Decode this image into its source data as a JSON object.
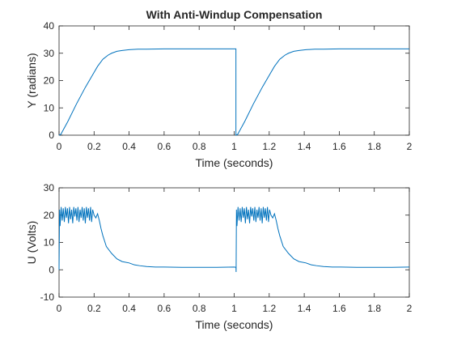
{
  "chart_data": [
    {
      "type": "line",
      "title": "With Anti-Windup Compensation",
      "xlabel": "Time (seconds)",
      "ylabel": "Y (radians)",
      "xlim": [
        0,
        2
      ],
      "ylim": [
        0,
        40
      ],
      "xticks": [
        0,
        0.2,
        0.4,
        0.6,
        0.8,
        1,
        1.2,
        1.4,
        1.6,
        1.8,
        2
      ],
      "xtick_labels": [
        "0",
        "0.2",
        "0.4",
        "0.6",
        "0.8",
        "1",
        "1.2",
        "1.4",
        "1.6",
        "1.8",
        "2"
      ],
      "yticks": [
        0,
        10,
        20,
        30,
        40
      ],
      "ytick_labels": [
        "0",
        "10",
        "20",
        "30",
        "40"
      ],
      "grid": false,
      "series": [
        {
          "color": "#0072BD",
          "x": [
            0,
            0.01,
            0.05,
            0.1,
            0.15,
            0.2,
            0.22,
            0.25,
            0.28,
            0.3,
            0.33,
            0.36,
            0.4,
            0.45,
            0.5,
            0.6,
            0.8,
            1.0,
            1.01,
            1.01,
            1.02,
            1.06,
            1.11,
            1.16,
            1.21,
            1.23,
            1.26,
            1.29,
            1.31,
            1.34,
            1.37,
            1.41,
            1.46,
            1.51,
            1.6,
            1.8,
            2.0
          ],
          "y": [
            0,
            0.3,
            5,
            11.5,
            17.5,
            23,
            25.2,
            27.8,
            29.3,
            30,
            30.7,
            31,
            31.3,
            31.5,
            31.5,
            31.6,
            31.6,
            31.6,
            31.6,
            0,
            0.3,
            5,
            11.5,
            17.5,
            23,
            25.2,
            27.8,
            29.3,
            30,
            30.7,
            31,
            31.3,
            31.5,
            31.5,
            31.6,
            31.6,
            31.6
          ]
        }
      ]
    },
    {
      "type": "line",
      "title": "",
      "xlabel": "Time (seconds)",
      "ylabel": "U (Volts)",
      "xlim": [
        0,
        2
      ],
      "ylim": [
        -10,
        30
      ],
      "xticks": [
        0,
        0.2,
        0.4,
        0.6,
        0.8,
        1,
        1.2,
        1.4,
        1.6,
        1.8,
        2
      ],
      "xtick_labels": [
        "0",
        "0.2",
        "0.4",
        "0.6",
        "0.8",
        "1",
        "1.2",
        "1.4",
        "1.6",
        "1.8",
        "2"
      ],
      "yticks": [
        -10,
        0,
        10,
        20,
        30
      ],
      "ytick_labels": [
        "-10",
        "0",
        "10",
        "20",
        "30"
      ],
      "grid": false,
      "series": [
        {
          "color": "#0072BD",
          "x": [
            0,
            0.003,
            0.006,
            0.012,
            0.018,
            0.024,
            0.03,
            0.036,
            0.042,
            0.048,
            0.054,
            0.06,
            0.066,
            0.072,
            0.078,
            0.084,
            0.09,
            0.096,
            0.102,
            0.108,
            0.114,
            0.12,
            0.126,
            0.132,
            0.138,
            0.144,
            0.15,
            0.156,
            0.162,
            0.168,
            0.174,
            0.18,
            0.186,
            0.192,
            0.2,
            0.21,
            0.22,
            0.23,
            0.24,
            0.25,
            0.27,
            0.3,
            0.33,
            0.36,
            0.4,
            0.43,
            0.46,
            0.5,
            0.55,
            0.6,
            0.7,
            0.8,
            0.9,
            1.0,
            1.01,
            1.011,
            1.013,
            1.016,
            1.022,
            1.028,
            1.034,
            1.04,
            1.046,
            1.052,
            1.058,
            1.064,
            1.07,
            1.076,
            1.082,
            1.088,
            1.094,
            1.1,
            1.106,
            1.112,
            1.118,
            1.124,
            1.13,
            1.136,
            1.142,
            1.148,
            1.154,
            1.16,
            1.166,
            1.172,
            1.178,
            1.184,
            1.19,
            1.196,
            1.202,
            1.21,
            1.22,
            1.23,
            1.24,
            1.25,
            1.26,
            1.28,
            1.31,
            1.34,
            1.37,
            1.41,
            1.44,
            1.47,
            1.51,
            1.56,
            1.61,
            1.7,
            1.8,
            1.9,
            2.0
          ],
          "y": [
            0,
            22,
            16,
            23,
            18,
            22.5,
            17.5,
            23,
            19,
            22.5,
            17,
            23,
            18.5,
            22,
            17,
            23,
            19.5,
            22.5,
            18,
            23,
            17.5,
            22,
            19,
            23,
            18,
            22.5,
            17,
            23,
            19,
            22.5,
            18,
            23,
            17.5,
            22,
            20,
            19,
            20.5,
            18,
            15,
            12.5,
            8.5,
            6,
            4,
            3,
            2.5,
            1.8,
            1.5,
            1.2,
            1,
            1,
            0.9,
            0.9,
            0.9,
            1,
            0.9,
            -0.8,
            22,
            16,
            23,
            18,
            22.5,
            17.5,
            23,
            19,
            22.5,
            17,
            23,
            18.5,
            22,
            17,
            23,
            19.5,
            22.5,
            18,
            23,
            17.5,
            22,
            19,
            23,
            18,
            22.5,
            17,
            23,
            19,
            22.5,
            18,
            23,
            17.5,
            22,
            20,
            19,
            20.5,
            18,
            15,
            12.5,
            8.5,
            6,
            4,
            3,
            2.5,
            1.8,
            1.5,
            1.2,
            1,
            1,
            0.9,
            0.9,
            0.9,
            1
          ]
        }
      ]
    }
  ]
}
